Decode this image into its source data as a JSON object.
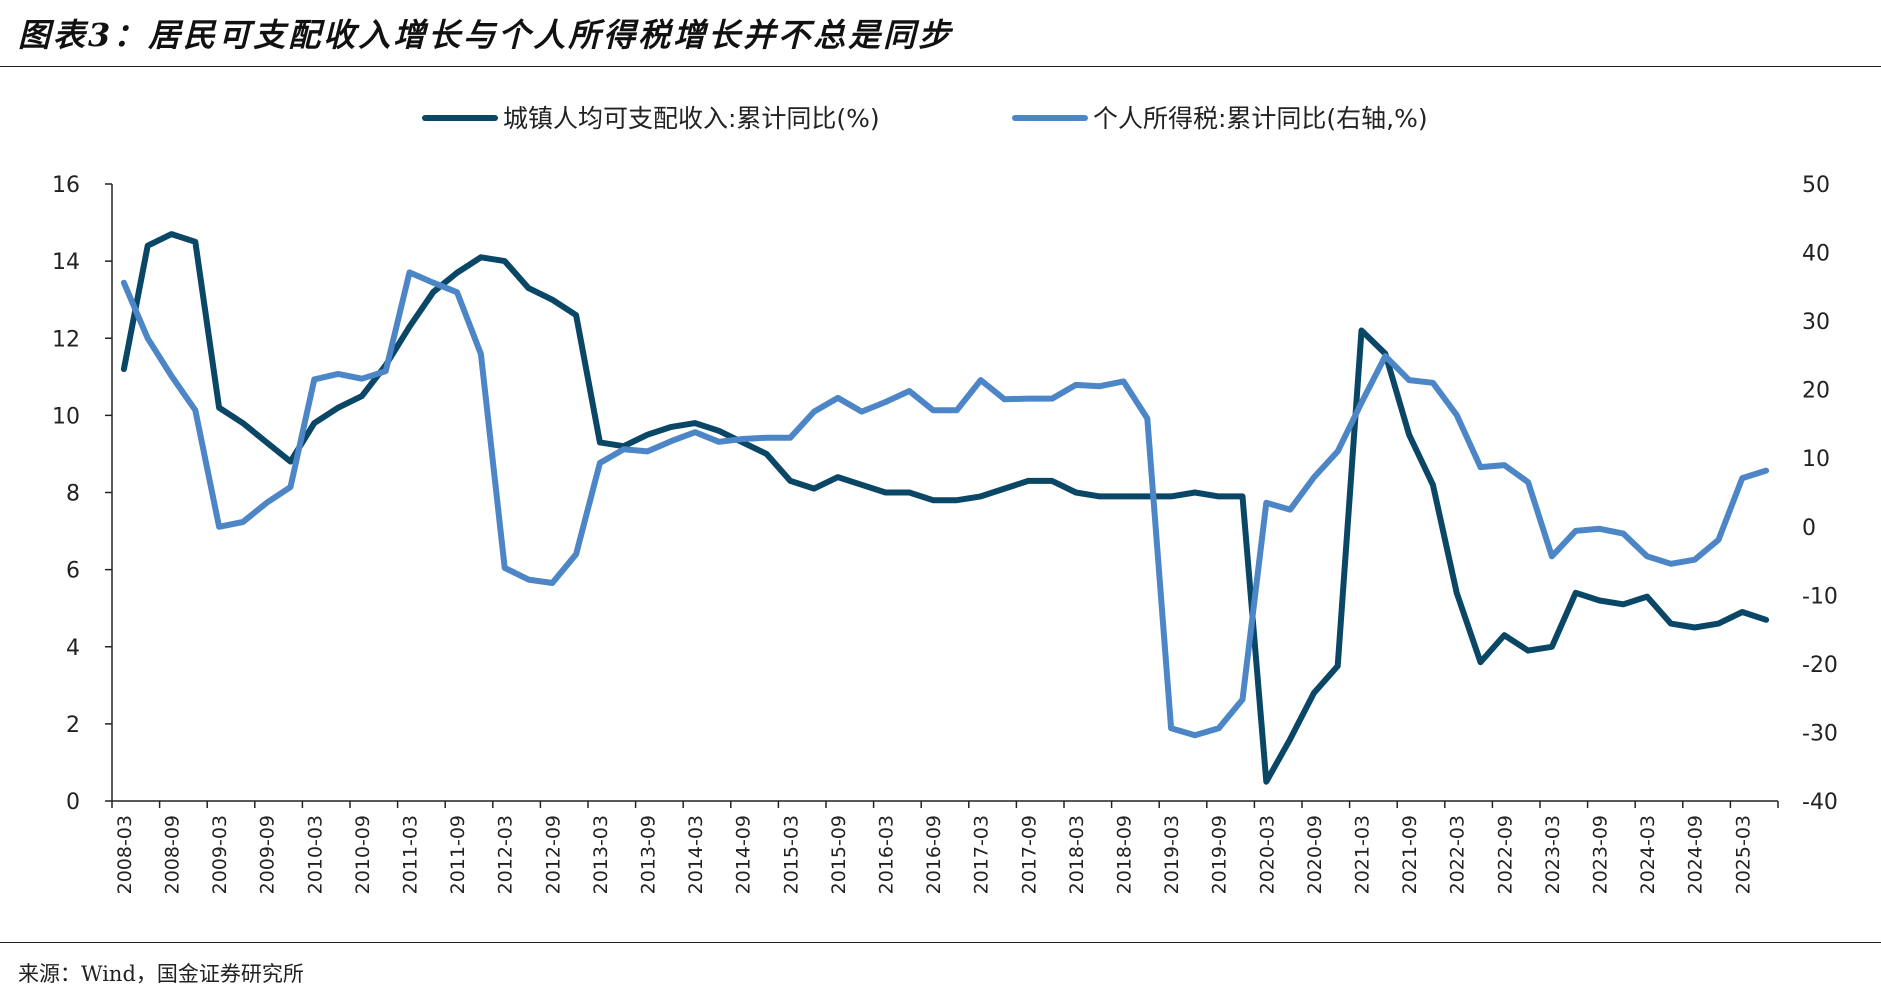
{
  "header": {
    "title": "图表3：居民可支配收入增长与个人所得税增长并不总是同步"
  },
  "footer": {
    "source": "来源：Wind，国金证券研究所"
  },
  "colors": {
    "series1": "#0a4766",
    "series2": "#4d86c6",
    "axis": "#222222"
  },
  "chart_data": {
    "type": "line",
    "title": "",
    "xlabel": "",
    "ylabel_left": "",
    "ylabel_right": "",
    "ylim_left": [
      0,
      16
    ],
    "yticks_left": [
      0,
      2,
      4,
      6,
      8,
      10,
      12,
      14,
      16
    ],
    "ylim_right": [
      -40,
      50
    ],
    "yticks_right": [
      -40,
      -30,
      -20,
      -10,
      0,
      10,
      20,
      30,
      40,
      50
    ],
    "legend_position": "top-center",
    "grid": false,
    "x_tick_labels": [
      "2008-03",
      "2008-09",
      "2009-03",
      "2009-09",
      "2010-03",
      "2010-09",
      "2011-03",
      "2011-09",
      "2012-03",
      "2012-09",
      "2013-03",
      "2013-09",
      "2014-03",
      "2014-09",
      "2015-03",
      "2015-09",
      "2016-03",
      "2016-09",
      "2017-03",
      "2017-09",
      "2018-03",
      "2018-09",
      "2019-03",
      "2019-09",
      "2020-03",
      "2020-09",
      "2021-03",
      "2021-09",
      "2022-03",
      "2022-09",
      "2023-03",
      "2023-09",
      "2024-03",
      "2024-09",
      "2025-03"
    ],
    "x": [
      "2008-03",
      "2008-06",
      "2008-09",
      "2008-12",
      "2009-03",
      "2009-06",
      "2009-09",
      "2009-12",
      "2010-03",
      "2010-06",
      "2010-09",
      "2010-12",
      "2011-03",
      "2011-06",
      "2011-09",
      "2011-12",
      "2012-03",
      "2012-06",
      "2012-09",
      "2012-12",
      "2013-03",
      "2013-06",
      "2013-09",
      "2013-12",
      "2014-03",
      "2014-06",
      "2014-09",
      "2014-12",
      "2015-03",
      "2015-06",
      "2015-09",
      "2015-12",
      "2016-03",
      "2016-06",
      "2016-09",
      "2016-12",
      "2017-03",
      "2017-06",
      "2017-09",
      "2017-12",
      "2018-03",
      "2018-06",
      "2018-09",
      "2018-12",
      "2019-03",
      "2019-06",
      "2019-09",
      "2019-12",
      "2020-03",
      "2020-06",
      "2020-09",
      "2020-12",
      "2021-03",
      "2021-06",
      "2021-09",
      "2021-12",
      "2022-03",
      "2022-06",
      "2022-09",
      "2022-12",
      "2023-03",
      "2023-06",
      "2023-09",
      "2023-12",
      "2024-03",
      "2024-06",
      "2024-09",
      "2024-12",
      "2025-03",
      "2025-06"
    ],
    "series": [
      {
        "name": "城镇人均可支配收入:累计同比(%)",
        "axis": "left",
        "values": [
          11.2,
          14.4,
          14.7,
          14.5,
          10.2,
          9.8,
          9.3,
          8.8,
          9.8,
          10.2,
          10.5,
          11.3,
          12.3,
          13.2,
          13.7,
          14.1,
          14.0,
          13.3,
          13.0,
          12.6,
          9.3,
          9.2,
          9.5,
          9.7,
          9.8,
          9.6,
          9.3,
          9.0,
          8.3,
          8.1,
          8.4,
          8.2,
          8.0,
          8.0,
          7.8,
          7.8,
          7.9,
          8.1,
          8.3,
          8.3,
          8.0,
          7.9,
          7.9,
          7.9,
          7.9,
          8.0,
          7.9,
          7.9,
          0.5,
          1.6,
          2.8,
          3.5,
          12.2,
          11.6,
          9.5,
          8.2,
          5.4,
          3.6,
          4.3,
          3.9,
          4.0,
          5.4,
          5.2,
          5.1,
          5.3,
          4.6,
          4.5,
          4.6,
          4.9,
          4.7
        ]
      },
      {
        "name": "个人所得税:累计同比(右轴,%)",
        "axis": "right",
        "values": [
          35.6,
          27.5,
          22.0,
          17.0,
          0.0,
          0.7,
          3.5,
          5.8,
          21.5,
          22.3,
          21.6,
          22.7,
          37.1,
          35.6,
          34.2,
          25.2,
          -6.0,
          -7.7,
          -8.2,
          -4.0,
          9.3,
          11.3,
          11.0,
          12.5,
          13.8,
          12.4,
          12.8,
          13.0,
          13.0,
          16.8,
          18.8,
          16.8,
          18.2,
          19.8,
          17.0,
          17.0,
          21.4,
          18.6,
          18.7,
          18.7,
          20.7,
          20.5,
          21.2,
          15.8,
          -29.4,
          -30.4,
          -29.4,
          -25.2,
          3.5,
          2.5,
          7.2,
          11.0,
          18.1,
          24.9,
          21.4,
          21.0,
          16.3,
          8.7,
          9.0,
          6.5,
          -4.3,
          -0.6,
          -0.3,
          -1.0,
          -4.3,
          -5.4,
          -4.8,
          -1.9,
          7.1,
          8.2
        ]
      }
    ]
  }
}
